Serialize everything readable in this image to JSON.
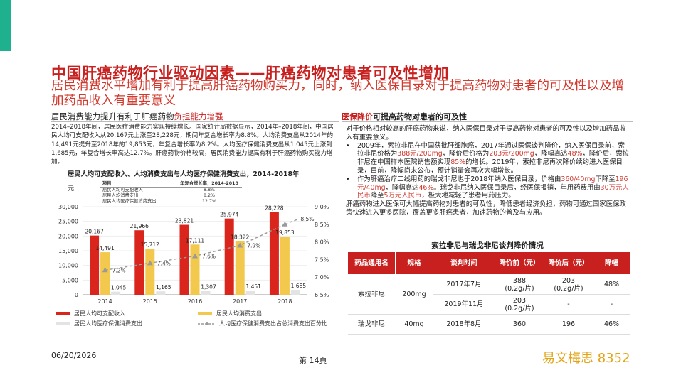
{
  "slide": {
    "title": "中国肝癌药物行业驱动因素——肝癌药物对患者可及性增加",
    "subtitle": "居民消费水平增加有利于提高肝癌药物购买力，同时，纳入医保目录对于提高药物对患者的可及性以及增加药品收入有重要意义",
    "accent_color": "#1fb08e",
    "brand_red": "#c8201f"
  },
  "left": {
    "heading_prefix": "居民消费能力提升有利于肝癌药物",
    "heading_highlight": "负担能力增强",
    "paragraph": "2014–2018年间，居民医疗消费能力实现持续增长。国家统计局数据显示，2014年–2018年间，中国居民人均可支配收入从20,167元上涨至28,228元，期间年复合增长率为8.8%。人均消费支出从2014年的14,491元提升至2018年的19,853元，年复合增长率为8.2%。人均医疗保健消费支出从1,045元上涨到1,685元，年复合增长率高达12.7%。肝癌药物价格较高，居民消费能力提高有利于肝癌药物购买能力增加。",
    "chart_title": "居民人均可支配收入、人均消费支出与人均医疗保健消费支出，2014-2018年",
    "chart_unit": "元",
    "growth_table": {
      "header": [
        "项目",
        "年复合增长率，2014-2018"
      ],
      "rows": [
        [
          "居民人均可支配收入",
          "8.8%"
        ],
        [
          "居民人均消费支出",
          "8.2%"
        ],
        [
          "居民人均医疗保健消费支出",
          "12.7%"
        ]
      ]
    }
  },
  "chart_data": {
    "type": "bar",
    "categories": [
      "2014",
      "2015",
      "2016",
      "2017",
      "2018"
    ],
    "series": [
      {
        "name": "居民人均可支配收入",
        "values": [
          20167,
          21966,
          23821,
          25974,
          28228
        ],
        "labels": [
          "20,167",
          "21,966",
          "23,821",
          "25,974",
          "28,228"
        ],
        "color": "#d9251c"
      },
      {
        "name": "居民人均消费支出",
        "values": [
          14491,
          15712,
          17111,
          18322,
          19853
        ],
        "labels": [
          "14,491",
          "15,712",
          "17,111",
          "18,322",
          "19,853"
        ],
        "color": "#f2c94c"
      },
      {
        "name": "居民人均医疗保健消费支出",
        "values": [
          1045,
          1165,
          1307,
          1451,
          1685
        ],
        "labels": [
          "1,045",
          "1,165",
          "1,307",
          "1,451",
          "1,685"
        ],
        "color": "#e3e3e3"
      }
    ],
    "line_series": {
      "name": "人均医疗保健消费支出占总消费支出百分比",
      "values": [
        7.2,
        7.4,
        7.6,
        7.9,
        8.5
      ],
      "labels": [
        "7.2%",
        "7.4%",
        "7.6%",
        "7.9%",
        "8.5%"
      ],
      "color": "#9a9a9a"
    },
    "y_left": {
      "ticks": [
        "0",
        "5,000",
        "10,000",
        "15,000",
        "20,000",
        "25,000",
        "30,000"
      ],
      "range": [
        0,
        30000
      ]
    },
    "y_right": {
      "ticks": [
        "6.5%",
        "7.0%",
        "7.5%",
        "8.0%",
        "8.5%",
        "9.0%"
      ],
      "range": [
        6.5,
        9.0
      ]
    }
  },
  "right": {
    "heading_highlight": "医保降价",
    "heading_rest": "可提高药物对患者的可及性",
    "intro": "对于价格相对较高的肝癌药物来说，纳入医保目录对于提高药物对患者的可及性以及增加药品收入有重要意义。",
    "bullet1_a": "2009年，索拉非尼在中国获批肝细胞癌，2017年通过医保谈判降价，纳入医保目录前，索拉非尼价格为",
    "bullet1_red1": "388元/200mg",
    "bullet1_b": "，降价后价格为",
    "bullet1_red2": "203元/200mg",
    "bullet1_c": "，降幅高达",
    "bullet1_red3": "48%",
    "bullet1_d": "，降价后，索拉非尼在中国样本医院销售额实现",
    "bullet1_red4": "85%",
    "bullet1_e": "的增长。2019年，索拉非尼再次降价续约进入医保目录，目前，降幅尚未公布，预计销量会再次大幅增长。",
    "bullet2_a": "作为肝癌治疗二线用药的瑞戈非尼也于2018年纳入医保目录，价格由",
    "bullet2_red1": "360/40mg",
    "bullet2_b": "下降至",
    "bullet2_red2": "196元/40mg",
    "bullet2_c": "，降幅高达",
    "bullet2_red3": "46%",
    "bullet2_d": "。瑞戈非尼纳入医保目录后，经医保报销，年用药费用由",
    "bullet2_red4": "30万元人民币",
    "bullet2_e": "降至",
    "bullet2_red5": "5万元人民币",
    "bullet2_f": "，极大地减轻了患者用药压力。",
    "closing": "肝癌药物进入医保可大幅提高药物对患者的可及性，降低患者经济负担，药物可通过国家医保政策快速进入更多医院，覆盖更多肝癌患者，加速药物的普及与应用。",
    "table_title": "索拉非尼与瑞戈非尼谈判降价情况",
    "table_header": [
      "药品通用名",
      "规格",
      "谈判时间",
      "降价前（元）",
      "降价后（元）",
      "降幅"
    ],
    "rows": {
      "r1": {
        "drug": "索拉非尼",
        "spec": "200mg",
        "time": "2017年7月",
        "before": "388\n(0.2g/片)",
        "after": "203\n(0.2g/片)",
        "drop": "48%"
      },
      "r2": {
        "time": "2019年11月",
        "before": "203\n(0.2g/片)",
        "after": "-",
        "drop": "-"
      },
      "r3": {
        "drug": "瑞戈非尼",
        "spec": "40mg",
        "time": "2018年8月",
        "before": "360",
        "after": "196",
        "drop": "46%"
      }
    }
  },
  "footer": {
    "date": "06/20/2026",
    "page": "第 14頁",
    "brand": "易文梅思 8352"
  }
}
